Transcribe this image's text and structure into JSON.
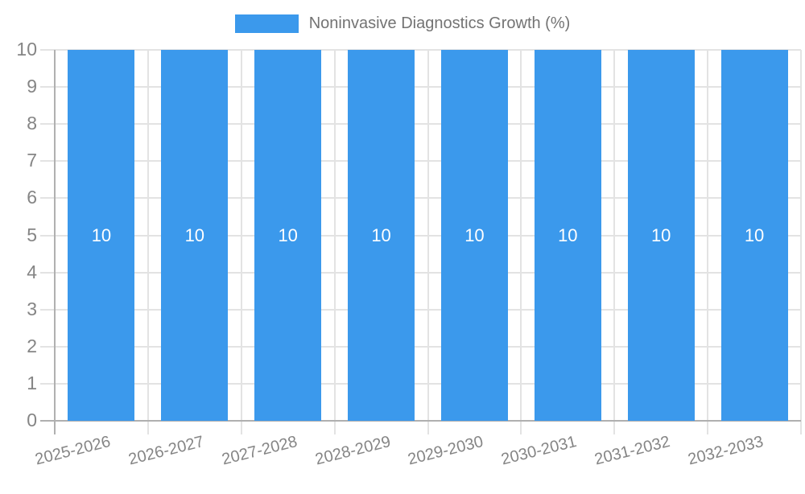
{
  "chart_data": {
    "type": "bar",
    "title": "",
    "legend": {
      "label": "Noninvasive Diagnostics Growth (%)",
      "position": "top-center"
    },
    "categories": [
      "2025-2026",
      "2026-2027",
      "2027-2028",
      "2028-2029",
      "2029-2030",
      "2030-2031",
      "2031-2032",
      "2032-2033"
    ],
    "series": [
      {
        "name": "Noninvasive Diagnostics Growth (%)",
        "values": [
          10,
          10,
          10,
          10,
          10,
          10,
          10,
          10
        ]
      }
    ],
    "bar_value_labels": [
      "10",
      "10",
      "10",
      "10",
      "10",
      "10",
      "10",
      "10"
    ],
    "xlabel": "",
    "ylabel": "",
    "ylim": [
      0,
      10
    ],
    "y_ticks": [
      0,
      1,
      2,
      3,
      4,
      5,
      6,
      7,
      8,
      9,
      10
    ],
    "grid": true,
    "x_labels_rotation_deg": -14,
    "colors": {
      "bar": "#3b99ec",
      "grid": "#e3e3e3",
      "axis": "#b0b0b0",
      "tick_text": "#858585",
      "legend_text": "#737373",
      "bar_label": "#ffffff",
      "background": "#ffffff"
    }
  }
}
